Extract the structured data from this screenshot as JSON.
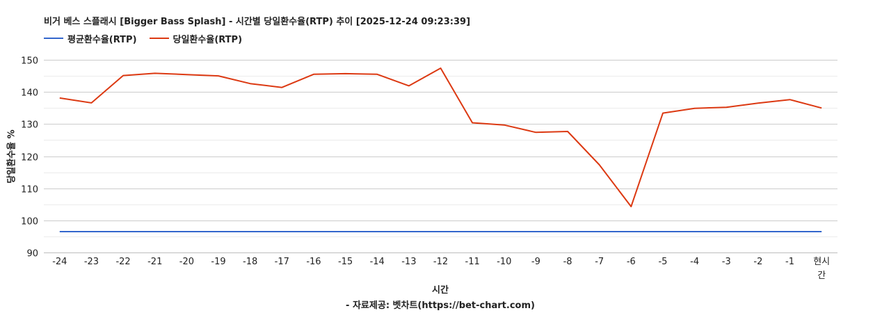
{
  "chart_data": {
    "type": "line",
    "title": "비거 베스 스플래시 [Bigger Bass Splash] - 시간별 당일환수율(RTP) 추이 [2025-12-24 09:23:39]",
    "xlabel": "시간",
    "ylabel": "당일환수율 %",
    "source_note": "- 자료제공: 벳차트(https://bet-chart.com)",
    "categories": [
      "-24",
      "-23",
      "-22",
      "-21",
      "-20",
      "-19",
      "-18",
      "-17",
      "-16",
      "-15",
      "-14",
      "-13",
      "-12",
      "-11",
      "-10",
      "-9",
      "-8",
      "-7",
      "-6",
      "-5",
      "-4",
      "-3",
      "-2",
      "-1",
      "현시간"
    ],
    "ylim": [
      90,
      150
    ],
    "yticks": [
      90,
      100,
      110,
      120,
      130,
      140,
      150
    ],
    "grid": true,
    "legend_position": "top-left",
    "series": [
      {
        "name": "평균환수율(RTP)",
        "color": "#3366cc",
        "values": [
          96.5,
          96.5,
          96.5,
          96.5,
          96.5,
          96.5,
          96.5,
          96.5,
          96.5,
          96.5,
          96.5,
          96.5,
          96.5,
          96.5,
          96.5,
          96.5,
          96.5,
          96.5,
          96.5,
          96.5,
          96.5,
          96.5,
          96.5,
          96.5,
          96.5
        ]
      },
      {
        "name": "당일환수율(RTP)",
        "color": "#dc3912",
        "values": [
          138.1,
          136.6,
          145.1,
          145.8,
          145.4,
          145.0,
          142.6,
          141.4,
          145.5,
          145.7,
          145.5,
          141.9,
          147.4,
          130.4,
          129.7,
          127.4,
          127.7,
          117.3,
          104.3,
          133.4,
          134.9,
          135.2,
          136.5,
          137.6,
          135.0
        ]
      }
    ]
  }
}
